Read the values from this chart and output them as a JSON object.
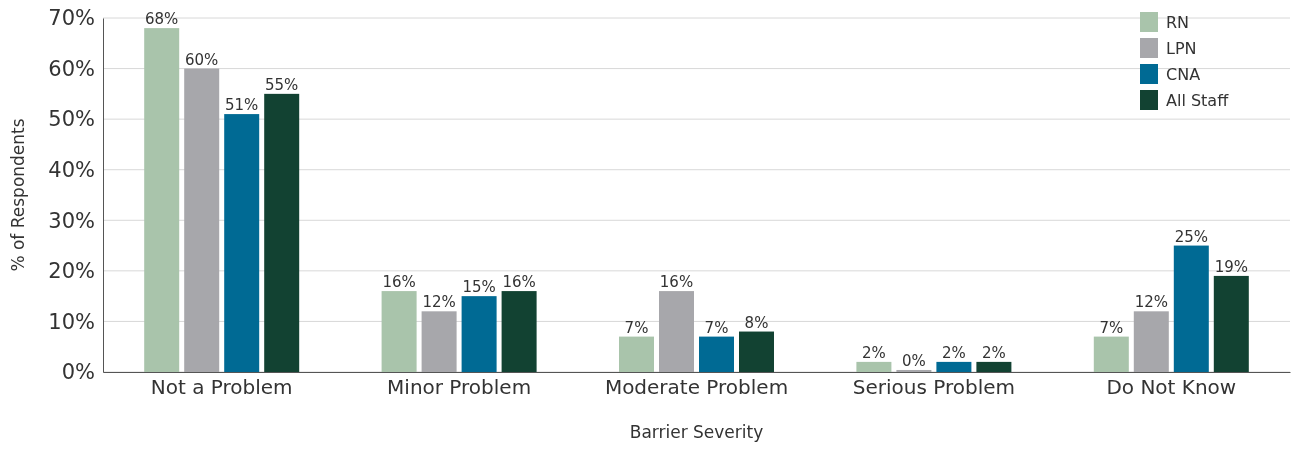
{
  "chart_data": {
    "type": "bar",
    "xlabel": "Barrier Severity",
    "ylabel": "% of Respondents",
    "categories": [
      "Not a Problem",
      "Minor Problem",
      "Moderate Problem",
      "Serious Problem",
      "Do Not Know"
    ],
    "series": [
      {
        "name": "RN",
        "color": "#a9c4ab",
        "values": [
          68,
          16,
          7,
          2,
          7
        ],
        "value_labels": [
          "68%",
          "16%",
          "7%",
          "2%",
          "7%"
        ]
      },
      {
        "name": "LPN",
        "color": "#a7a7ab",
        "values": [
          60,
          12,
          16,
          0.4,
          12
        ],
        "value_labels": [
          "60%",
          "12%",
          "16%",
          "0%",
          "12%"
        ]
      },
      {
        "name": "CNA",
        "color": "#006a94",
        "values": [
          51,
          15,
          7,
          2,
          25
        ],
        "value_labels": [
          "51%",
          "15%",
          "7%",
          "2%",
          "25%"
        ]
      },
      {
        "name": "All Staff",
        "color": "#124232",
        "values": [
          55,
          16,
          8,
          2,
          19
        ],
        "value_labels": [
          "55%",
          "16%",
          "8%",
          "2%",
          "19%"
        ]
      }
    ],
    "ylim": [
      0,
      70
    ],
    "yticks": [
      {
        "value": 0,
        "label": "0%"
      },
      {
        "value": 10,
        "label": "10%"
      },
      {
        "value": 20,
        "label": "20%"
      },
      {
        "value": 30,
        "label": "30%"
      },
      {
        "value": 40,
        "label": "40%"
      },
      {
        "value": 50,
        "label": "50%"
      },
      {
        "value": 60,
        "label": "60%"
      },
      {
        "value": 70,
        "label": "70%"
      }
    ],
    "grid": "y",
    "legend": "top right"
  }
}
